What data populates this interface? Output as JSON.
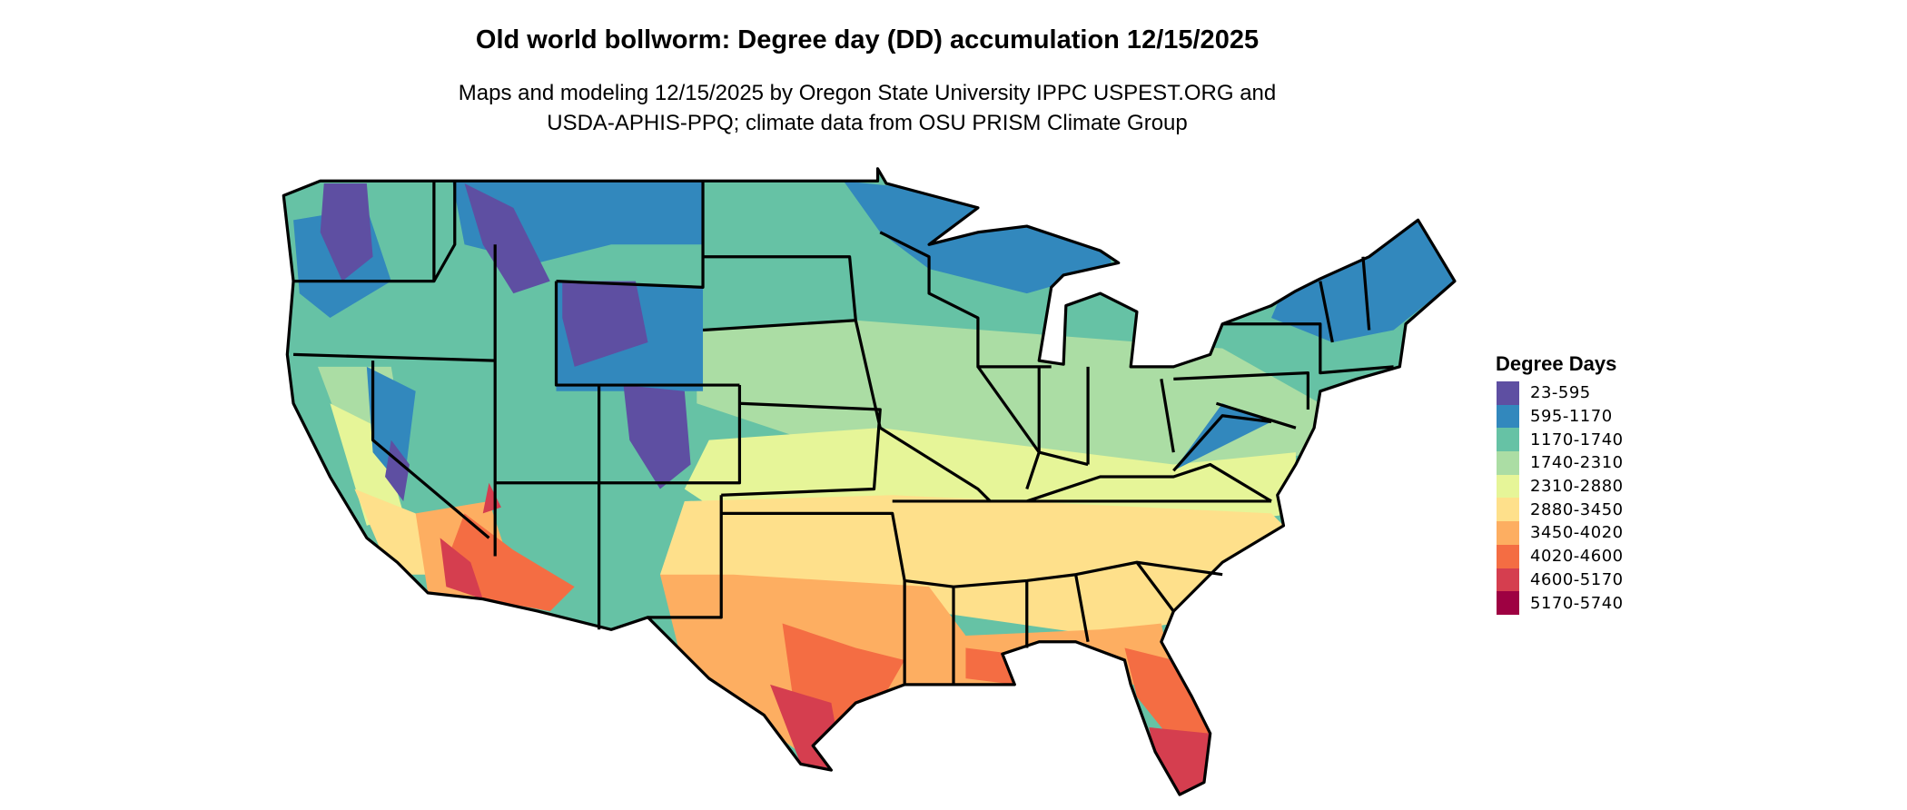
{
  "title": "Old world bollworm: Degree day (DD) accumulation 12/15/2025",
  "subtitle_line1": "Maps and modeling 12/15/2025 by Oregon State University IPPC USPEST.ORG and",
  "subtitle_line2": "USDA-APHIS-PPQ; climate data from OSU PRISM Climate Group",
  "map": {
    "region": "Contiguous United States",
    "variable": "Degree day accumulation",
    "state_borders": true
  },
  "legend": {
    "title": "Degree Days",
    "placement": "right",
    "items": [
      {
        "label": "23-595",
        "color": "#5e4fa2"
      },
      {
        "label": "595-1170",
        "color": "#3288bd"
      },
      {
        "label": "1170-1740",
        "color": "#66c2a5"
      },
      {
        "label": "1740-2310",
        "color": "#abdda4"
      },
      {
        "label": "2310-2880",
        "color": "#e6f598"
      },
      {
        "label": "2880-3450",
        "color": "#fee08b"
      },
      {
        "label": "3450-4020",
        "color": "#fdae61"
      },
      {
        "label": "4020-4600",
        "color": "#f46d43"
      },
      {
        "label": "4600-5170",
        "color": "#d53e4f"
      },
      {
        "label": "5170-5740",
        "color": "#9e0142"
      }
    ]
  }
}
